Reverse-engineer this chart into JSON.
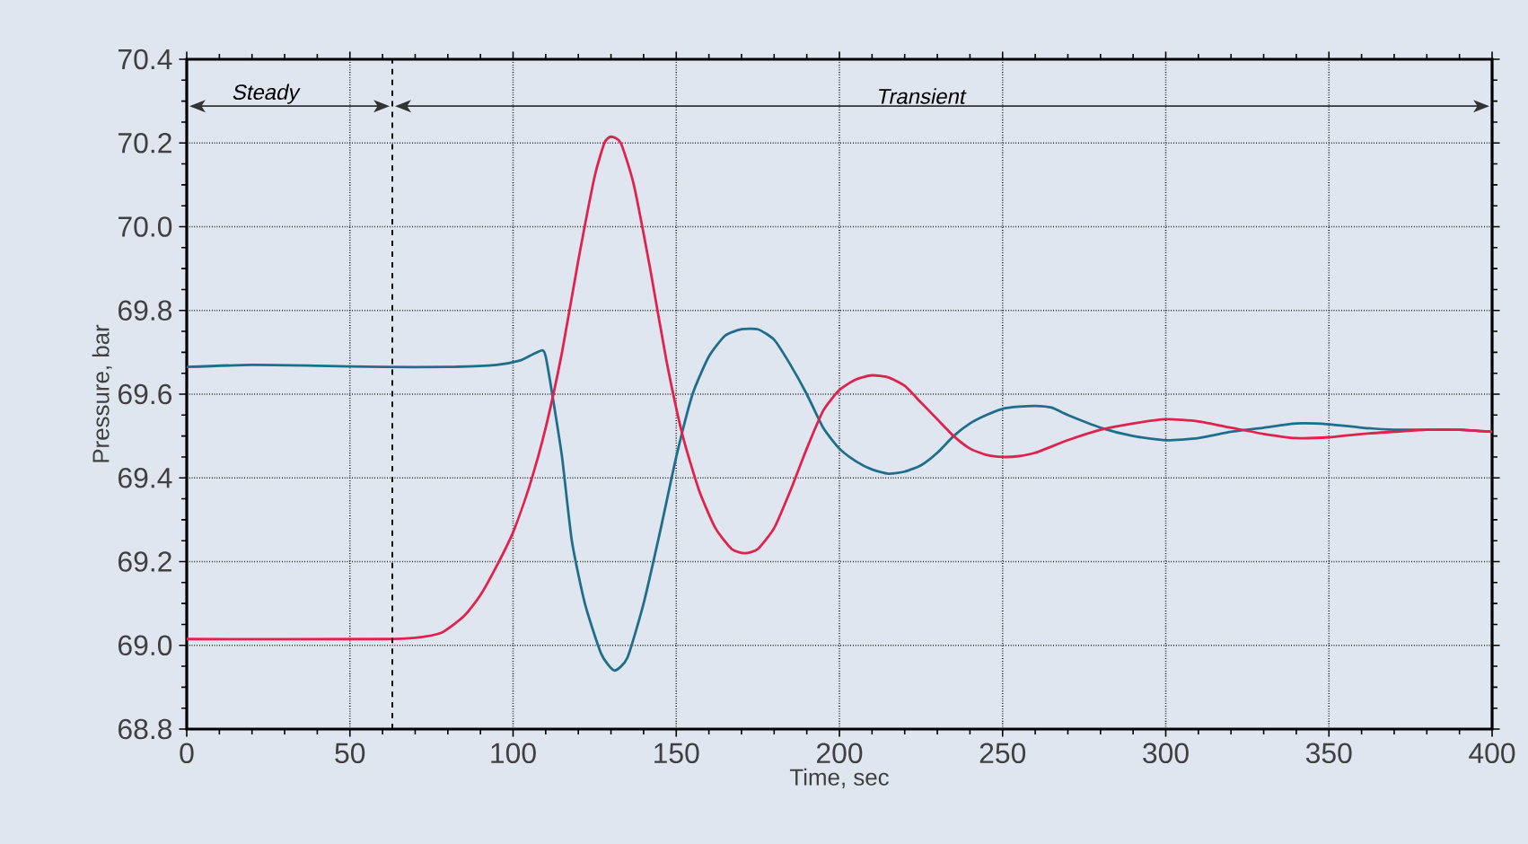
{
  "chart_data": {
    "type": "line",
    "xlabel": "Time, sec",
    "ylabel": "Pressure, bar",
    "xlim": [
      0,
      400
    ],
    "ylim": [
      68.8,
      70.4
    ],
    "xticks": [
      0,
      50,
      100,
      150,
      200,
      250,
      300,
      350,
      400
    ],
    "yticks": [
      {
        "value": 68.8,
        "label": "68.8"
      },
      {
        "value": 69.0,
        "label": "69.0"
      },
      {
        "value": 69.2,
        "label": "69.2"
      },
      {
        "value": 69.4,
        "label": "69.4"
      },
      {
        "value": 69.6,
        "label": "69.6"
      },
      {
        "value": 69.8,
        "label": "69.8"
      },
      {
        "value": 70.0,
        "label": "70.0"
      },
      {
        "value": 70.2,
        "label": "70.2"
      },
      {
        "value": 70.4,
        "label": "70.4"
      }
    ],
    "grid": true,
    "line_style": "solid",
    "ref_lines": [
      {
        "axis": "x",
        "value": 63,
        "label": null,
        "color": "#000000",
        "line_style": "dashed"
      }
    ],
    "annotations": [
      "Steady",
      "Transient"
    ],
    "series": [
      {
        "color": "#1f6e8c",
        "x": [
          0,
          20,
          40,
          60,
          80,
          95,
          102,
          106,
          109,
          110,
          112,
          115,
          118,
          122,
          127,
          131,
          135,
          140,
          145,
          150,
          155,
          160,
          165,
          170,
          175,
          180,
          185,
          190,
          195,
          200,
          205,
          210,
          215,
          220,
          225,
          230,
          235,
          240,
          245,
          250,
          255,
          260,
          265,
          270,
          280,
          290,
          300,
          310,
          320,
          330,
          340,
          350,
          360,
          370,
          380,
          390,
          400
        ],
        "values": [
          69.665,
          69.67,
          69.668,
          69.665,
          69.665,
          69.67,
          69.68,
          69.695,
          69.705,
          69.69,
          69.6,
          69.45,
          69.25,
          69.1,
          68.98,
          68.94,
          68.97,
          69.1,
          69.27,
          69.45,
          69.6,
          69.69,
          69.74,
          69.755,
          69.755,
          69.73,
          69.67,
          69.6,
          69.52,
          69.47,
          69.44,
          69.42,
          69.41,
          69.415,
          69.43,
          69.46,
          69.5,
          69.53,
          69.55,
          69.565,
          69.57,
          69.572,
          69.568,
          69.55,
          69.52,
          69.5,
          69.49,
          69.495,
          69.51,
          69.52,
          69.53,
          69.528,
          69.52,
          69.515,
          69.515,
          69.515,
          69.51
        ]
      },
      {
        "color": "#e0224d",
        "x": [
          0,
          60,
          70,
          78,
          85,
          90,
          95,
          100,
          105,
          110,
          115,
          120,
          125,
          128,
          130,
          133,
          137,
          142,
          147,
          152,
          157,
          162,
          167,
          171,
          175,
          180,
          185,
          190,
          195,
          200,
          205,
          210,
          215,
          220,
          225,
          230,
          235,
          240,
          245,
          250,
          255,
          260,
          270,
          280,
          290,
          300,
          310,
          320,
          330,
          340,
          350,
          360,
          370,
          380,
          390,
          400
        ],
        "values": [
          69.015,
          69.015,
          69.018,
          69.03,
          69.07,
          69.12,
          69.19,
          69.27,
          69.38,
          69.52,
          69.7,
          69.92,
          70.12,
          70.2,
          70.215,
          70.2,
          70.1,
          69.9,
          69.68,
          69.5,
          69.37,
          69.28,
          69.23,
          69.22,
          69.23,
          69.28,
          69.37,
          69.47,
          69.56,
          69.61,
          69.635,
          69.645,
          69.64,
          69.62,
          69.58,
          69.54,
          69.5,
          69.47,
          69.455,
          69.45,
          69.452,
          69.46,
          69.49,
          69.515,
          69.53,
          69.54,
          69.535,
          69.52,
          69.505,
          69.495,
          69.497,
          69.505,
          69.51,
          69.515,
          69.515,
          69.51
        ]
      }
    ]
  }
}
